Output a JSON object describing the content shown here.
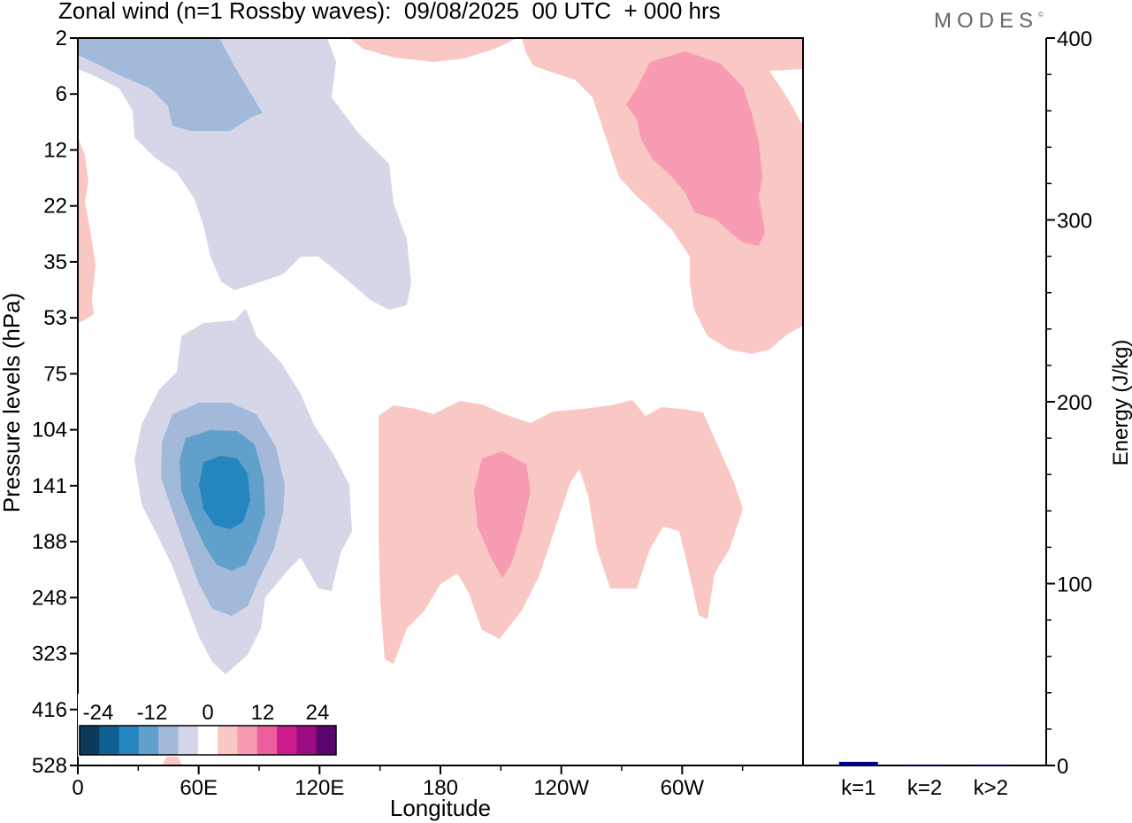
{
  "header": {
    "title": "Zonal wind (n=1 Rossby waves):  09/08/2025  00 UTC  + 000 hrs",
    "brand": "MODES",
    "brand_mark": "©"
  },
  "chart_data": [
    {
      "type": "contour",
      "title": "Zonal wind (n=1 Rossby waves)",
      "xlabel": "Longitude",
      "ylabel": "Pressure levels (hPa)",
      "x_tick_labels": [
        "0",
        "60E",
        "120E",
        "180",
        "120W",
        "60W"
      ],
      "x_tick_values_deg": [
        0,
        60,
        120,
        180,
        240,
        300
      ],
      "xlim_deg": [
        0,
        360
      ],
      "y_tick_labels": [
        "2",
        "6",
        "12",
        "22",
        "35",
        "53",
        "75",
        "104",
        "141",
        "188",
        "248",
        "323",
        "416",
        "528"
      ],
      "colorbar": {
        "tick_labels": [
          "-24",
          "-12",
          "0",
          "12",
          "24"
        ],
        "colors": [
          "#0b3a5a",
          "#0e6192",
          "#2586bf",
          "#62a0cc",
          "#a3b9da",
          "#d5d7e8",
          "#ffffff",
          "#f9c8c4",
          "#f79cb2",
          "#ec5e9c",
          "#cd1c8b",
          "#9c0c80",
          "#5a056f"
        ]
      },
      "features": [
        {
          "name": "easterly-jet-upper-troposphere",
          "sign": "negative",
          "center_lon": "~70E",
          "center_level_hPa": 141,
          "peak_level": "-18"
        },
        {
          "name": "easterly-stratosphere",
          "sign": "negative",
          "center_lon": "~60E",
          "center_level_hPa": 6,
          "peak_level": "-9"
        },
        {
          "name": "westerly-upper-troposphere",
          "sign": "positive",
          "center_lon": "~160W",
          "center_level_hPa": 141,
          "peak_level": "6"
        },
        {
          "name": "westerly-stratosphere",
          "sign": "positive",
          "center_lon": "~60W",
          "center_level_hPa": 12,
          "peak_level": "6"
        }
      ]
    },
    {
      "type": "bar",
      "ylabel": "Energy (J/kg)",
      "categories": [
        "k=1",
        "k=2",
        "k>2"
      ],
      "values": [
        2,
        0.3,
        0.5
      ],
      "ylim": [
        0,
        400
      ],
      "y_tick_labels": [
        "0",
        "100",
        "200",
        "300",
        "400"
      ],
      "bar_color": "#00008b"
    }
  ]
}
